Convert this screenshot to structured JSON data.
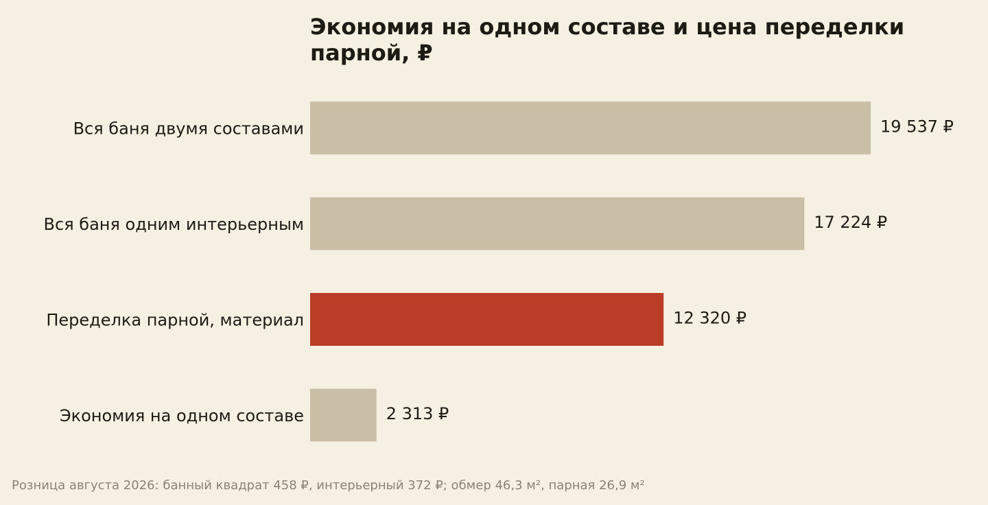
{
  "chart_data": {
    "type": "bar",
    "orientation": "horizontal",
    "title": "Экономия на одном составе и цена переделки парной, ₽",
    "categories": [
      "Вся баня двумя составами",
      "Вся баня одним интерьерным",
      "Переделка парной, материал",
      "Экономия на одном составе"
    ],
    "values": [
      19537,
      17224,
      12320,
      2313
    ],
    "value_labels": [
      "19 537 ₽",
      "17 224 ₽",
      "12 320 ₽",
      "2 313 ₽"
    ],
    "highlight_index": 2,
    "colors": {
      "default_bar": "#c9bfa7",
      "highlight_bar": "#bb3d27",
      "background": "#f6f0e3"
    },
    "grid": false,
    "legend": "none"
  },
  "footnote": "Розница августа 2026: банный квадрат 458 ₽, интерьерный 372 ₽; обмер 46,3 м², парная 26,9 м²"
}
